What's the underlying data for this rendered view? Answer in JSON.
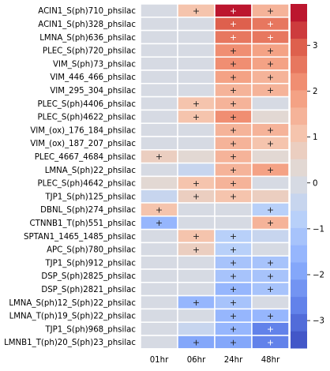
{
  "chart_data": {
    "type": "heatmap",
    "title": "",
    "xlabel": "",
    "ylabel": "",
    "x_labels": [
      "01hr",
      "06hr",
      "24hr",
      "48hr"
    ],
    "y_labels": [
      "ACIN1_S(ph)710_phsilac",
      "ACIN1_S(ph)328_phsilac",
      "LMNA_S(ph)636_phsilac",
      "PLEC_S(ph)720_phsilac",
      "VIM_S(ph)73_phsilac",
      "VIM_446_466_phsilac",
      "VIM_295_304_phsilac",
      "PLEC_S(ph)4406_phsilac",
      "PLEC_S(ph)4622_phsilac",
      "VIM_(ox)_176_184_phsilac",
      "VIM_(ox)_187_207_phsilac",
      "PLEC_4667_4684_phsilac",
      "LMNA_S(ph)22_phsilac",
      "PLEC_S(ph)4642_phsilac",
      "TJP1_S(ph)125_phsilac",
      "DBNL_S(ph)274_phsilac",
      "CTNNB1_T(ph)551_phsilac",
      "SPTAN1_1465_1485_phsilac",
      "APC_S(ph)780_phsilac",
      "TJP1_S(ph)912_phsilac",
      "DSP_S(ph)2825_phsilac",
      "DSP_S(ph)2821_phsilac",
      "LMNA_S(ph)12_S(ph)22_phsilac",
      "LMNA_T(ph)19_S(ph)22_phsilac",
      "TJP1_S(ph)968_phsilac",
      "LMNB1_T(ph)20_S(ph)23_phsilac"
    ],
    "values": [
      [
        0.0,
        0.9,
        3.6,
        1.3
      ],
      [
        0.0,
        0.0,
        3.0,
        2.7
      ],
      [
        0.0,
        0.0,
        2.5,
        2.5
      ],
      [
        0.0,
        0.0,
        2.2,
        2.0
      ],
      [
        0.0,
        0.0,
        2.2,
        1.9
      ],
      [
        0.0,
        0.0,
        1.9,
        1.6
      ],
      [
        0.0,
        0.0,
        1.5,
        1.6
      ],
      [
        0.0,
        1.0,
        1.5,
        0.0
      ],
      [
        0.0,
        0.9,
        2.1,
        0.3
      ],
      [
        0.0,
        0.0,
        1.3,
        1.3
      ],
      [
        0.0,
        0.0,
        1.3,
        1.1
      ],
      [
        0.7,
        0.4,
        1.4,
        0.4
      ],
      [
        0.0,
        -0.4,
        1.5,
        2.0
      ],
      [
        0.3,
        1.0,
        1.3,
        0.0
      ],
      [
        -0.4,
        0.7,
        1.2,
        0.8
      ],
      [
        1.2,
        0.0,
        0.0,
        -0.8
      ],
      [
        -1.5,
        0.0,
        0.0,
        1.3
      ],
      [
        0.0,
        1.0,
        -0.9,
        -0.4
      ],
      [
        0.0,
        0.8,
        -0.8,
        0.0
      ],
      [
        0.0,
        0.0,
        -1.1,
        -1.1
      ],
      [
        0.0,
        0.0,
        -1.2,
        -1.1
      ],
      [
        0.0,
        0.0,
        -1.4,
        -1.3
      ],
      [
        0.0,
        -1.4,
        -1.0,
        0.0
      ],
      [
        0.0,
        0.0,
        -1.5,
        -1.7
      ],
      [
        0.0,
        -0.6,
        -1.4,
        -2.6
      ],
      [
        0.0,
        -1.8,
        -2.0,
        -2.8
      ]
    ],
    "annotations": [
      [
        "",
        "+",
        "+",
        "+"
      ],
      [
        "",
        "",
        "+",
        "+"
      ],
      [
        "",
        "",
        "+",
        "+"
      ],
      [
        "",
        "",
        "+",
        "+"
      ],
      [
        "",
        "",
        "+",
        "+"
      ],
      [
        "",
        "",
        "+",
        "+"
      ],
      [
        "",
        "",
        "+",
        "+"
      ],
      [
        "",
        "+",
        "+",
        ""
      ],
      [
        "",
        "+",
        "+",
        ""
      ],
      [
        "",
        "",
        "+",
        "+"
      ],
      [
        "",
        "",
        "+",
        "+"
      ],
      [
        "+",
        "",
        "+",
        ""
      ],
      [
        "",
        "",
        "+",
        "+"
      ],
      [
        "",
        "+",
        "+",
        ""
      ],
      [
        "",
        "+",
        "+",
        ""
      ],
      [
        "+",
        "",
        "",
        "+"
      ],
      [
        "+",
        "",
        "",
        "+"
      ],
      [
        "",
        "+",
        "+",
        ""
      ],
      [
        "",
        "+",
        "+",
        ""
      ],
      [
        "",
        "",
        "+",
        "+"
      ],
      [
        "",
        "",
        "+",
        "+"
      ],
      [
        "",
        "",
        "+",
        "+"
      ],
      [
        "",
        "+",
        "+",
        ""
      ],
      [
        "",
        "",
        "+",
        "+"
      ],
      [
        "",
        "",
        "+",
        "+"
      ],
      [
        "",
        "+",
        "+",
        "+"
      ]
    ],
    "colormap": "coolwarm",
    "vmin": -3.6,
    "vmax": 3.9,
    "colorbar_ticks": [
      -3,
      -2,
      -1,
      0,
      1,
      2,
      3
    ],
    "colorbar_levels": 20,
    "cell_border_color": "#ffffff"
  }
}
